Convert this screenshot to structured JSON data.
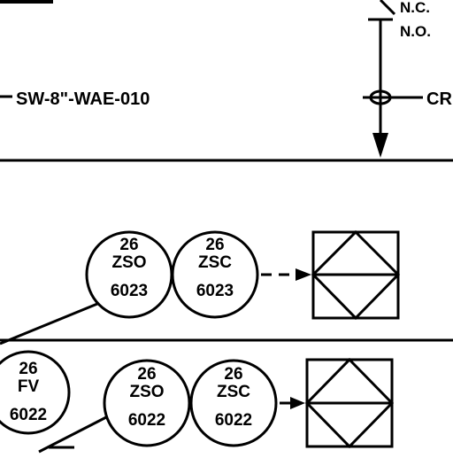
{
  "line_label": "SW-8\"-WAE-010",
  "switch_labels": {
    "nc": "N.C.",
    "no": "N.O."
  },
  "cr_label": "CR",
  "instruments": [
    {
      "area": "26",
      "code": "ZSO",
      "number": "6023"
    },
    {
      "area": "26",
      "code": "ZSC",
      "number": "6023"
    },
    {
      "area": "26",
      "code": "FV",
      "number": "6022"
    },
    {
      "area": "26",
      "code": "ZSO",
      "number": "6022"
    },
    {
      "area": "26",
      "code": "ZSC",
      "number": "6022"
    }
  ]
}
